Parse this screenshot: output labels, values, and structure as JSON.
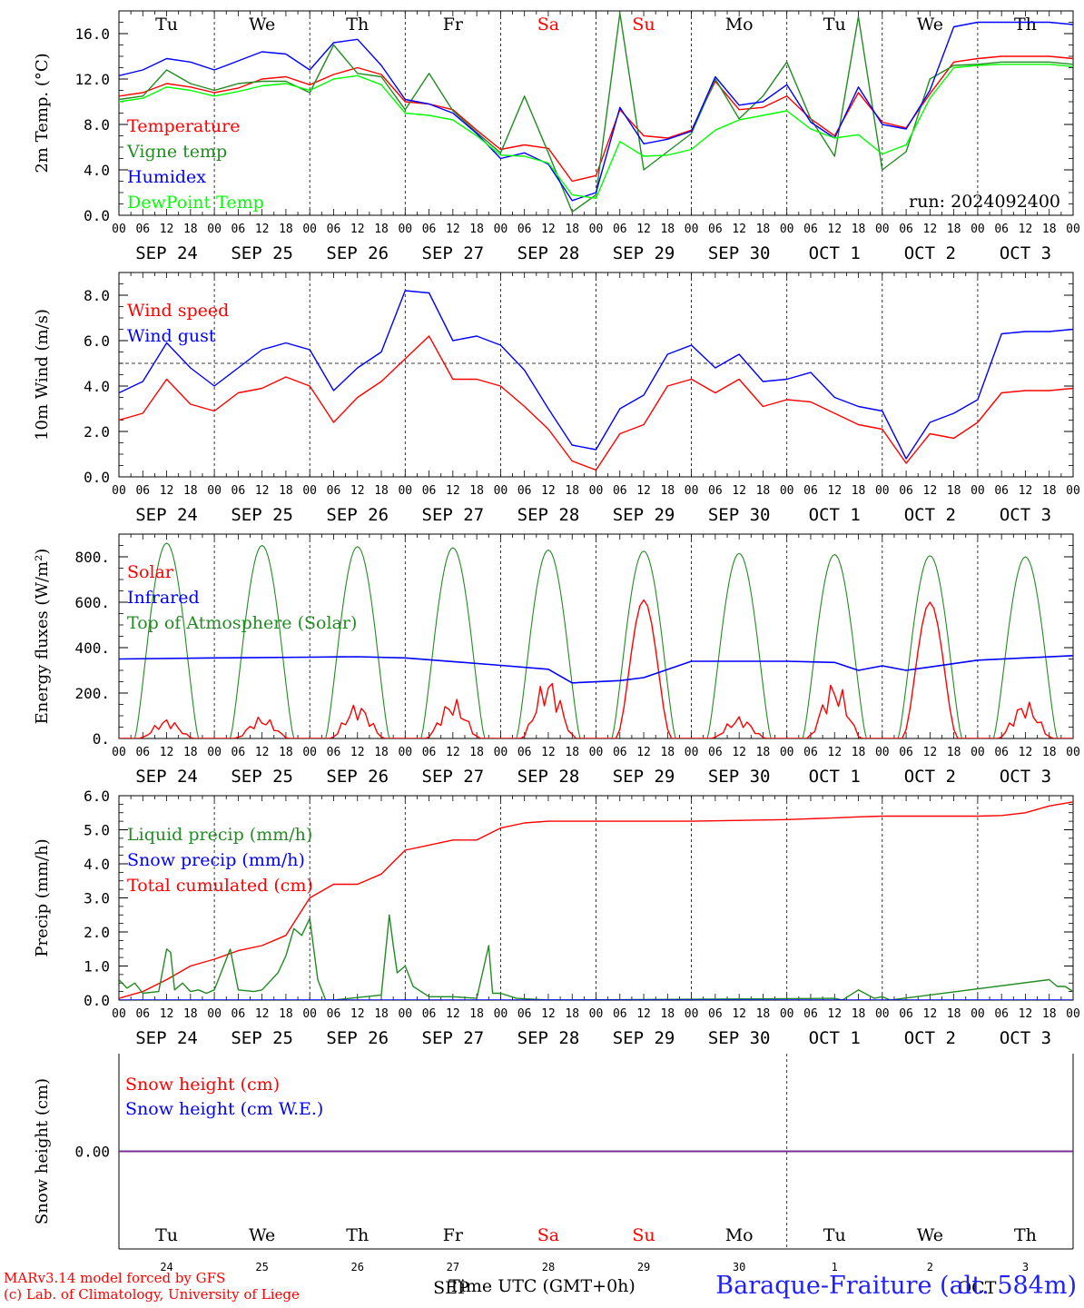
{
  "days": [
    "Tu",
    "We",
    "Th",
    "Fr",
    "Sa",
    "Su",
    "Mo",
    "Tu",
    "We",
    "Th"
  ],
  "day_colors": [
    "#000000",
    "#000000",
    "#000000",
    "#000000",
    "#ff0000",
    "#ff0000",
    "#000000",
    "#000000",
    "#000000",
    "#000000"
  ],
  "date_labels": [
    "SEP 24",
    "SEP 25",
    "SEP 26",
    "SEP 27",
    "SEP 28",
    "SEP 29",
    "SEP 30",
    "OCT  1",
    "OCT  2",
    "OCT  3"
  ],
  "date_numbers": [
    "24",
    "25",
    "26",
    "27",
    "28",
    "29",
    "30",
    "1",
    "2",
    "3"
  ],
  "hour_ticks": [
    "00",
    "06",
    "12",
    "18"
  ],
  "footer": {
    "credit1": "MARv3.14 model forced by GFS",
    "credit2": "(c) Lab. of Climatology, University of Liege",
    "xlabel": "Time UTC (GMT+0h)",
    "month_overlay_1": "SEP",
    "month_overlay_2": "OCT",
    "station": "Baraque-Fraiture (alt. 584m)"
  },
  "chart_data": [
    {
      "type": "line",
      "ylabel": "2m Temp. (°C)",
      "ylim": [
        0,
        18
      ],
      "yticks": [
        "0.0",
        "4.0",
        "8.0",
        "12.0",
        "16.0"
      ],
      "annotation": "run: 2024092400",
      "legend": [
        "Temperature",
        "Vigne temp",
        "Humidex",
        "DewPoint Temp"
      ],
      "x_hours": [
        0,
        6,
        12,
        18,
        24,
        30,
        36,
        42,
        48,
        54,
        60,
        66,
        72,
        78,
        84,
        90,
        96,
        102,
        108,
        114,
        120,
        126,
        132,
        138,
        144,
        150,
        156,
        162,
        168,
        174,
        180,
        186,
        192,
        198,
        204,
        210,
        216,
        222,
        228,
        234,
        240
      ],
      "series": [
        {
          "name": "Temperature",
          "color": "#ff0000",
          "values": [
            10.5,
            10.8,
            11.6,
            11.3,
            10.8,
            11.2,
            12.0,
            12.2,
            11.5,
            12.4,
            13.0,
            12.4,
            10.0,
            9.8,
            9.3,
            7.5,
            5.8,
            6.2,
            5.9,
            3.0,
            3.5,
            9.3,
            7.0,
            6.8,
            7.5,
            11.8,
            9.3,
            9.5,
            10.5,
            8.5,
            7.0,
            10.8,
            8.2,
            7.7,
            10.7,
            13.5,
            13.8,
            14.0,
            14.0,
            14.0,
            13.8
          ]
        },
        {
          "name": "Vigne temp",
          "color": "#228b22",
          "values": [
            10.2,
            10.5,
            12.8,
            11.6,
            11.0,
            11.6,
            11.8,
            11.8,
            10.8,
            15.0,
            12.5,
            12.2,
            9.3,
            12.5,
            9.2,
            7.3,
            5.5,
            10.5,
            5.5,
            0.3,
            1.8,
            17.8,
            4.0,
            5.6,
            7.2,
            12.0,
            8.5,
            10.5,
            13.5,
            8.5,
            5.2,
            17.5,
            4.0,
            5.6,
            12.0,
            13.2,
            13.3,
            13.5,
            13.5,
            13.5,
            13.3
          ]
        },
        {
          "name": "Humidex",
          "color": "#0000ff",
          "values": [
            12.3,
            12.8,
            13.8,
            13.5,
            12.8,
            13.6,
            14.4,
            14.2,
            12.8,
            15.2,
            15.5,
            13.2,
            10.2,
            9.8,
            9.0,
            7.2,
            5.0,
            5.5,
            4.5,
            1.3,
            2.0,
            9.5,
            6.3,
            6.7,
            7.4,
            12.2,
            9.7,
            10.0,
            11.5,
            8.2,
            6.8,
            11.3,
            8.0,
            7.6,
            11.0,
            16.6,
            17.0,
            17.0,
            17.0,
            17.0,
            16.8
          ]
        },
        {
          "name": "DewPoint Temp",
          "color": "#00ff00",
          "values": [
            10.0,
            10.3,
            11.3,
            11.0,
            10.5,
            10.9,
            11.4,
            11.6,
            11.0,
            12.0,
            12.3,
            11.5,
            9.0,
            8.8,
            8.4,
            7.0,
            5.3,
            5.2,
            4.6,
            1.8,
            1.5,
            6.5,
            5.2,
            5.3,
            5.8,
            7.5,
            8.4,
            8.8,
            9.2,
            7.6,
            6.8,
            7.1,
            5.4,
            6.2,
            10.3,
            13.0,
            13.2,
            13.3,
            13.3,
            13.3,
            13.1
          ]
        }
      ]
    },
    {
      "type": "line",
      "ylabel": "10m Wind (m/s)",
      "ylim": [
        0,
        9
      ],
      "yticks": [
        "0.0",
        "2.0",
        "4.0",
        "6.0",
        "8.0"
      ],
      "reference_line": 5,
      "legend": [
        "Wind speed",
        "Wind gust"
      ],
      "x_hours": [
        0,
        6,
        12,
        18,
        24,
        30,
        36,
        42,
        48,
        54,
        60,
        66,
        72,
        78,
        84,
        90,
        96,
        102,
        108,
        114,
        120,
        126,
        132,
        138,
        144,
        150,
        156,
        162,
        168,
        174,
        180,
        186,
        192,
        198,
        204,
        210,
        216,
        222,
        228,
        234,
        240
      ],
      "series": [
        {
          "name": "Wind speed",
          "color": "#ff0000",
          "values": [
            2.5,
            2.8,
            4.3,
            3.2,
            2.9,
            3.7,
            3.9,
            4.4,
            4.0,
            2.4,
            3.5,
            4.2,
            5.2,
            6.2,
            4.3,
            4.3,
            4.0,
            3.1,
            2.1,
            0.7,
            0.3,
            1.9,
            2.3,
            4.0,
            4.3,
            3.7,
            4.3,
            3.1,
            3.4,
            3.3,
            2.8,
            2.3,
            2.1,
            0.6,
            1.9,
            1.7,
            2.4,
            3.7,
            3.8,
            3.8,
            3.9
          ]
        },
        {
          "name": "Wind gust",
          "color": "#0000ff",
          "values": [
            3.7,
            4.2,
            5.9,
            4.8,
            4.0,
            4.8,
            5.6,
            5.9,
            5.6,
            3.8,
            4.8,
            5.5,
            8.2,
            8.1,
            6.0,
            6.2,
            5.8,
            4.7,
            3.0,
            1.4,
            1.2,
            3.0,
            3.6,
            5.4,
            5.8,
            4.8,
            5.4,
            4.2,
            4.3,
            4.6,
            3.5,
            3.1,
            2.9,
            0.8,
            2.4,
            2.8,
            3.4,
            6.3,
            6.4,
            6.4,
            6.5
          ]
        }
      ]
    },
    {
      "type": "line",
      "ylabel": "Energy fluxes (W/m²)",
      "ylim": [
        0,
        900
      ],
      "yticks": [
        "0.",
        "200.",
        "400.",
        "600.",
        "800."
      ],
      "legend": [
        "Solar",
        "Infrared",
        "Top of Atmosphere (Solar)"
      ],
      "solar_daily_peaks": [
        90,
        100,
        160,
        180,
        280,
        610,
        100,
        260,
        600,
        170
      ],
      "toa_daily_peaks": [
        860,
        850,
        845,
        840,
        830,
        825,
        815,
        810,
        805,
        800
      ],
      "series": [
        {
          "name": "Infrared",
          "color": "#0000ff",
          "x_hours": [
            0,
            24,
            48,
            60,
            72,
            96,
            108,
            114,
            126,
            132,
            144,
            168,
            180,
            186,
            192,
            198,
            204,
            216,
            240
          ],
          "values": [
            350,
            355,
            358,
            360,
            355,
            322,
            305,
            245,
            255,
            268,
            340,
            340,
            335,
            300,
            320,
            300,
            315,
            345,
            365
          ]
        }
      ]
    },
    {
      "type": "line",
      "ylabel": "Precip (mm/h)",
      "ylim": [
        0,
        6
      ],
      "yticks": [
        "0.0",
        "1.0",
        "2.0",
        "3.0",
        "4.0",
        "5.0",
        "6.0"
      ],
      "legend": [
        "Liquid precip (mm/h)",
        "Snow precip (mm/h)",
        "Total cumulated (cm)"
      ],
      "series": [
        {
          "name": "Total cumulated (cm)",
          "color": "#ff0000",
          "x_hours": [
            0,
            6,
            12,
            18,
            24,
            30,
            36,
            42,
            48,
            54,
            60,
            66,
            72,
            78,
            84,
            90,
            96,
            102,
            108,
            120,
            144,
            168,
            180,
            186,
            192,
            198,
            204,
            216,
            222,
            228,
            234,
            240
          ],
          "values": [
            0.05,
            0.25,
            0.6,
            1.0,
            1.2,
            1.45,
            1.6,
            1.9,
            3.0,
            3.4,
            3.4,
            3.7,
            4.4,
            4.55,
            4.7,
            4.7,
            5.05,
            5.2,
            5.25,
            5.25,
            5.25,
            5.3,
            5.35,
            5.38,
            5.4,
            5.4,
            5.4,
            5.4,
            5.42,
            5.5,
            5.7,
            5.82
          ]
        },
        {
          "name": "Liquid precip (mm/h)",
          "color": "#228b22",
          "x_hours": [
            0,
            2,
            4,
            6,
            10,
            12,
            13,
            14,
            16,
            18,
            20,
            22,
            24,
            26,
            28,
            30,
            34,
            36,
            40,
            42,
            44,
            46,
            48,
            50,
            52,
            54,
            66,
            68,
            69,
            70,
            72,
            74,
            78,
            84,
            90,
            93,
            94,
            96,
            100,
            108,
            180,
            182,
            186,
            190,
            192,
            194,
            234,
            236,
            238,
            240
          ],
          "values": [
            0.6,
            0.35,
            0.5,
            0.2,
            0.25,
            1.5,
            1.4,
            0.3,
            0.5,
            0.25,
            0.3,
            0.2,
            0.3,
            0.9,
            1.5,
            0.3,
            0.25,
            0.3,
            0.8,
            1.3,
            2.1,
            1.9,
            2.4,
            0.6,
            0.0,
            0.0,
            0.15,
            2.5,
            1.6,
            0.8,
            1.0,
            0.4,
            0.1,
            0.1,
            0.05,
            1.6,
            0.2,
            0.2,
            0.05,
            0.0,
            0.05,
            0.0,
            0.3,
            0.05,
            0.1,
            0.0,
            0.6,
            0.4,
            0.4,
            0.25
          ]
        },
        {
          "name": "Snow precip (mm/h)",
          "color": "#0000ff",
          "x_hours": [
            0,
            240
          ],
          "values": [
            0,
            0
          ]
        }
      ]
    },
    {
      "type": "line",
      "ylabel": "Snow height (cm)",
      "ylim": [
        -0.01,
        0.01
      ],
      "yticks": [
        "0.00"
      ],
      "legend": [
        "Snow height (cm)",
        "Snow height (cm W.E.)"
      ],
      "series": [
        {
          "name": "Snow height (cm)",
          "color": "#ff0000",
          "x_hours": [
            0,
            240
          ],
          "values": [
            0,
            0
          ]
        },
        {
          "name": "Snow height (cm W.E.)",
          "color": "#0000ff",
          "x_hours": [
            0,
            240
          ],
          "values": [
            0,
            0
          ]
        }
      ]
    }
  ]
}
